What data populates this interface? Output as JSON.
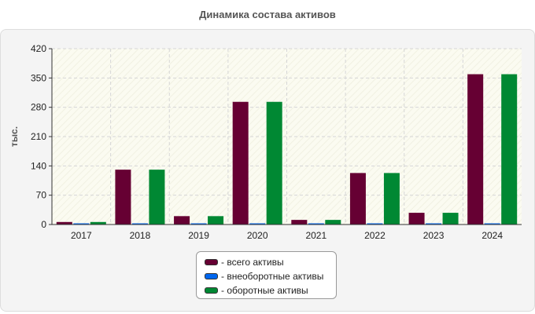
{
  "colors": {
    "total": "#660033",
    "noncurrent": "#0066ee",
    "current": "#008833"
  },
  "chart_data": {
    "type": "bar",
    "title": "Динамика состава активов",
    "ylabel": "тыс.",
    "xlabel": "",
    "ylim": [
      0,
      420
    ],
    "yticks": [
      "0",
      "70",
      "140",
      "210",
      "280",
      "350",
      "420"
    ],
    "categories": [
      "2017",
      "2018",
      "2019",
      "2020",
      "2021",
      "2022",
      "2023",
      "2024"
    ],
    "series": [
      {
        "name": "- всего активы",
        "color": "#660033",
        "values": [
          6,
          131,
          20,
          293,
          11,
          123,
          28,
          359
        ]
      },
      {
        "name": "- внеоборотные активы",
        "color": "#0066ee",
        "values": [
          1,
          1,
          1,
          1,
          1,
          1,
          1,
          1
        ]
      },
      {
        "name": "- оборотные активы",
        "color": "#008833",
        "values": [
          6,
          131,
          20,
          293,
          11,
          123,
          28,
          359
        ]
      }
    ],
    "grid": true,
    "legend_position": "bottom-center"
  }
}
